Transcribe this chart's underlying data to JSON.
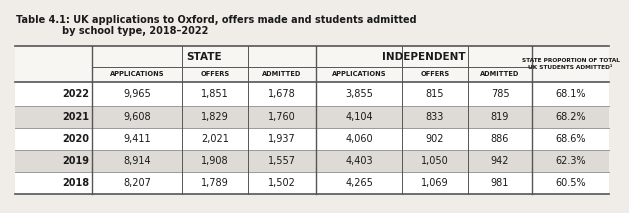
{
  "title_line1": "Table 4.1: UK applications to Oxford, offers made and students admitted",
  "title_line2": "by school type, 2018–2022",
  "years": [
    "2022",
    "2021",
    "2020",
    "2019",
    "2018"
  ],
  "state_applications": [
    "9,965",
    "9,608",
    "9,411",
    "8,914",
    "8,207"
  ],
  "state_offers": [
    "1,851",
    "1,829",
    "2,021",
    "1,908",
    "1,789"
  ],
  "state_admitted": [
    "1,678",
    "1,760",
    "1,937",
    "1,557",
    "1,502"
  ],
  "indep_applications": [
    "3,855",
    "4,104",
    "4,060",
    "4,403",
    "4,265"
  ],
  "indep_offers": [
    "815",
    "833",
    "902",
    "1,050",
    "1,069"
  ],
  "indep_admitted": [
    "785",
    "819",
    "886",
    "942",
    "981"
  ],
  "state_proportion": [
    "68.1%",
    "68.2%",
    "68.6%",
    "62.3%",
    "60.5%"
  ],
  "header1": "STATE",
  "header2": "INDEPENDENT",
  "col_state": [
    "APPLICATIONS",
    "OFFERS",
    "ADMITTED"
  ],
  "col_indep": [
    "APPLICATIONS",
    "OFFERS",
    "ADMITTED"
  ],
  "col_last": "STATE PROPORTION OF TOTAL\nUK STUDENTS ADMITTED¹",
  "bg_color": "#f0ede8",
  "font_color": "#1a1a1a",
  "row_colors": [
    "#ffffff",
    "#dedbd6"
  ]
}
